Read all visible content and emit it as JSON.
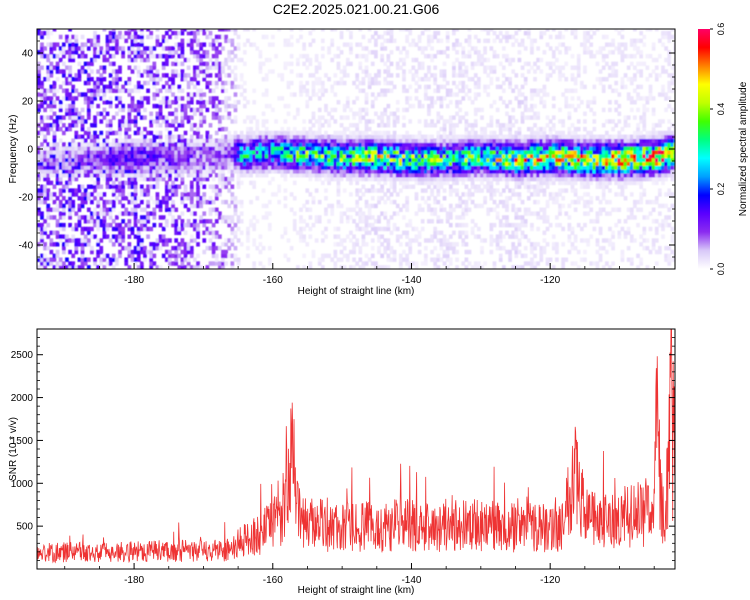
{
  "title": "C2E2.2025.021.00.21.G06",
  "chart_data": [
    {
      "type": "heatmap",
      "xlabel": "Height of straight line (km)",
      "ylabel": "Frequency (Hz)",
      "xlim": [
        -194,
        -102
      ],
      "ylim": [
        -50,
        50
      ],
      "xticks": [
        -180,
        -160,
        -140,
        -120
      ],
      "yticks": [
        -40,
        -20,
        0,
        20,
        40
      ],
      "colorbar": {
        "label": "Normalized spectral amplitude",
        "range": [
          0,
          0.6
        ],
        "ticks": [
          "0.0",
          "0.2",
          "0.4",
          "0.6"
        ],
        "colormap": [
          "#ffffff",
          "#d8c8f8",
          "#8b2cf0",
          "#5a00ff",
          "#0000ff",
          "#00a0ff",
          "#00ffff",
          "#00ff80",
          "#40ff00",
          "#c0ff00",
          "#ffff00",
          "#ff8000",
          "#ff0000",
          "#ff0066"
        ]
      },
      "band_profile": {
        "x": [
          -194,
          -190,
          -185,
          -180,
          -175,
          -170,
          -166,
          -165,
          -160,
          -155,
          -150,
          -145,
          -140,
          -135,
          -130,
          -125,
          -120,
          -115,
          -110,
          -105,
          -102
        ],
        "center_hz": [
          -6,
          -5,
          -5,
          -4,
          -5,
          -4,
          -2,
          -3,
          -2,
          -3,
          -4,
          -4,
          -5,
          -5,
          -4,
          -5,
          -4,
          -5,
          -5,
          -4,
          -2
        ],
        "band_amplitude": [
          0.05,
          0.07,
          0.1,
          0.15,
          0.1,
          0.08,
          0.12,
          0.28,
          0.3,
          0.34,
          0.35,
          0.4,
          0.38,
          0.33,
          0.35,
          0.42,
          0.45,
          0.47,
          0.5,
          0.55,
          0.45
        ],
        "background_amplitude": [
          0.12,
          0.13,
          0.12,
          0.12,
          0.11,
          0.1,
          0.06,
          0.02,
          0.01,
          0.02,
          0.02,
          0.03,
          0.02,
          0.03,
          0.02,
          0.03,
          0.02,
          0.02,
          0.02,
          0.02,
          0.02
        ]
      }
    },
    {
      "type": "line",
      "xlabel": "Height of straight line (km)",
      "ylabel": "SNR (10 * v/v)",
      "xlim": [
        -194,
        -102
      ],
      "ylim": [
        0,
        2800
      ],
      "xticks": [
        -180,
        -160,
        -140,
        -120
      ],
      "yticks": [
        500,
        1000,
        1500,
        2000,
        2500
      ],
      "series_color": "#ee3333",
      "series": [
        {
          "x": [
            -194,
            -190,
            -185,
            -180,
            -175,
            -170,
            -166,
            -164,
            -162,
            -160,
            -159,
            -158,
            -157.4,
            -157,
            -156,
            -155,
            -152,
            -150,
            -148,
            -146,
            -144,
            -142,
            -140,
            -138,
            -136,
            -134,
            -132,
            -130,
            -128,
            -126,
            -124,
            -122,
            -120,
            -118,
            -116.5,
            -115,
            -113,
            -110,
            -108,
            -106,
            -105,
            -104.5,
            -104,
            -103.5,
            -103,
            -102.6,
            -102.3,
            -102
          ],
          "y": [
            200,
            220,
            210,
            230,
            240,
            230,
            260,
            380,
            450,
            560,
            700,
            1000,
            1880,
            900,
            700,
            600,
            550,
            520,
            560,
            540,
            520,
            600,
            560,
            520,
            540,
            600,
            550,
            580,
            550,
            520,
            600,
            560,
            500,
            620,
            1420,
            700,
            600,
            650,
            700,
            750,
            900,
            2080,
            900,
            800,
            1100,
            2800,
            1200,
            1800
          ]
        }
      ]
    }
  ]
}
